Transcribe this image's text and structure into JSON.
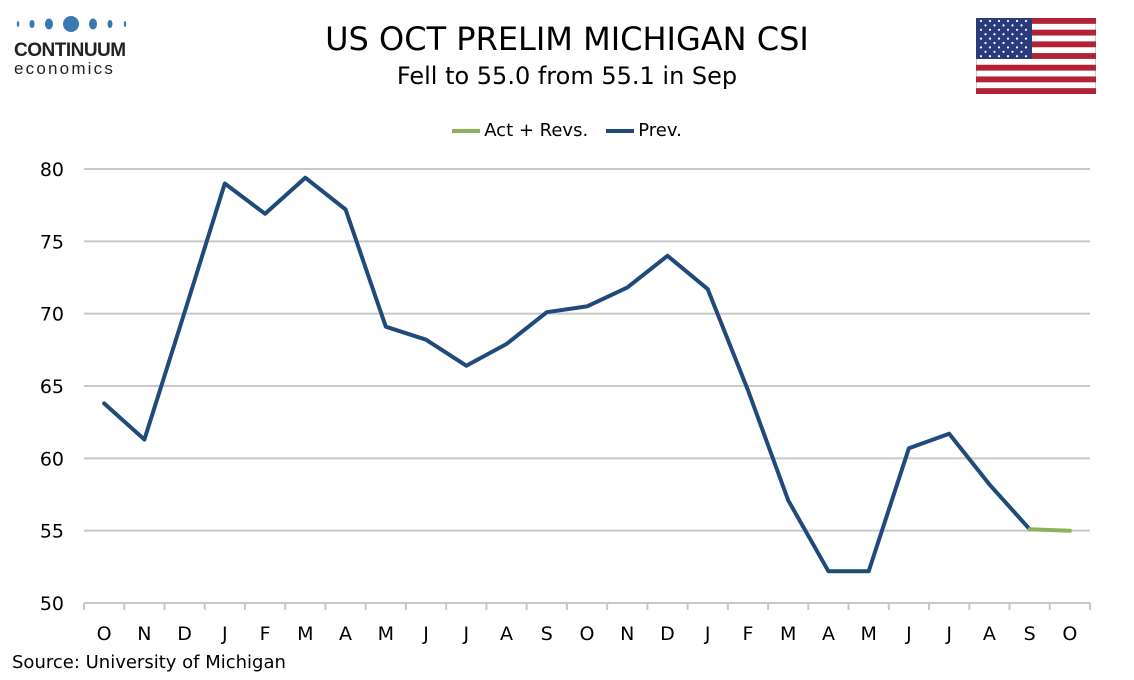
{
  "header": {
    "title": "US OCT PRELIM MICHIGAN CSI",
    "subtitle": "Fell to 55.0 from 55.1 in Sep"
  },
  "logo": {
    "word1": "CONTINUUM",
    "word2": "economics",
    "color": "#3a78b0"
  },
  "flag": "us-flag",
  "source": "Source: University of Michigan",
  "chart_data": {
    "type": "line",
    "title": "US OCT PRELIM MICHIGAN CSI",
    "subtitle": "Fell to 55.0 from 55.1 in Sep",
    "categories": [
      "O",
      "N",
      "D",
      "J",
      "F",
      "M",
      "A",
      "M",
      "J",
      "J",
      "A",
      "S",
      "O",
      "N",
      "D",
      "J",
      "F",
      "M",
      "A",
      "M",
      "J",
      "J",
      "A",
      "S",
      "O"
    ],
    "ylim": [
      50,
      80
    ],
    "yticks": [
      50,
      55,
      60,
      65,
      70,
      75,
      80
    ],
    "grid": true,
    "legend_position": "top",
    "series": [
      {
        "name": "Act + Revs.",
        "color": "#8db35a",
        "values": [
          null,
          null,
          null,
          null,
          null,
          null,
          null,
          null,
          null,
          null,
          null,
          null,
          null,
          null,
          null,
          null,
          null,
          null,
          null,
          null,
          null,
          null,
          null,
          55.1,
          55.0
        ]
      },
      {
        "name": "Prev.",
        "color": "#1f4a7a",
        "values": [
          63.8,
          61.3,
          70.1,
          79.0,
          76.9,
          79.4,
          77.2,
          69.1,
          68.2,
          66.4,
          67.9,
          70.1,
          70.5,
          71.8,
          74.0,
          71.7,
          64.7,
          57.1,
          52.2,
          52.2,
          60.7,
          61.7,
          58.2,
          55.1,
          null
        ]
      }
    ]
  }
}
